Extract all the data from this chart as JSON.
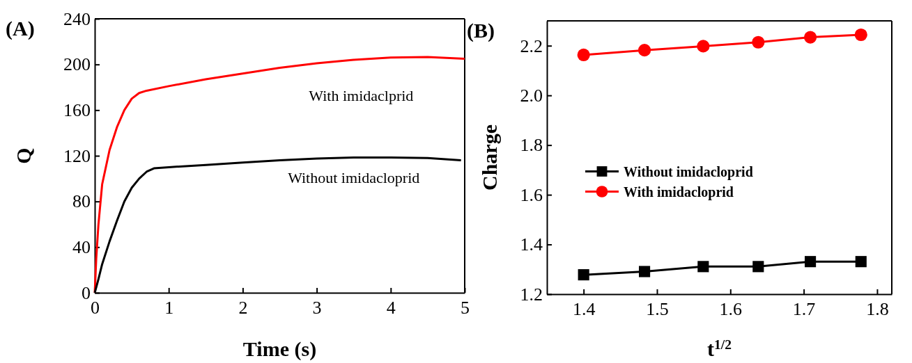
{
  "chart_data": [
    {
      "type": "line",
      "title": "(A)",
      "xlabel": "Time (s)",
      "ylabel": "Q",
      "xlim": [
        0,
        5
      ],
      "ylim": [
        0,
        240
      ],
      "xticks": [
        0,
        1,
        2,
        3,
        4,
        5
      ],
      "yticks": [
        0,
        40,
        80,
        120,
        160,
        200,
        240
      ],
      "grid": false,
      "legend": false,
      "series": [
        {
          "color": "#ff0000",
          "x": [
            0,
            0.02,
            0.05,
            0.1,
            0.2,
            0.3,
            0.4,
            0.5,
            0.6,
            0.7,
            1,
            1.5,
            2,
            2.5,
            3,
            3.5,
            4,
            4.5,
            5
          ],
          "values": [
            0,
            30,
            60,
            95,
            125,
            145,
            160,
            170,
            175,
            177,
            181,
            187,
            192,
            197,
            201,
            204,
            206,
            206.5,
            205
          ]
        },
        {
          "color": "#000000",
          "x": [
            0,
            0.05,
            0.1,
            0.2,
            0.3,
            0.4,
            0.5,
            0.6,
            0.7,
            0.8,
            1,
            1.5,
            2,
            2.5,
            3,
            3.5,
            4,
            4.5,
            4.95
          ],
          "values": [
            0,
            12,
            25,
            45,
            63,
            80,
            92,
            100,
            106,
            109,
            110,
            112,
            114,
            116,
            117.5,
            118.5,
            118.5,
            118,
            116
          ]
        }
      ],
      "annotations": [
        "With imidaclprid",
        "Without imidacloprid"
      ]
    },
    {
      "type": "line",
      "title": "(B)",
      "xlabel": "t$^{1/2}$",
      "ylabel": "Charge",
      "xlim": [
        1.35,
        1.82
      ],
      "ylim": [
        1.2,
        2.3
      ],
      "xticks": [
        1.4,
        1.5,
        1.6,
        1.7,
        1.8
      ],
      "yticks": [
        1.2,
        1.4,
        1.6,
        1.8,
        {
          "value": 2,
          "label": "2.0"
        },
        2.2
      ],
      "grid": false,
      "legend": "left",
      "x": [
        1.4,
        1.483,
        1.563,
        1.638,
        1.709,
        1.778
      ],
      "series": [
        {
          "name": "Without imidacloprid",
          "color": "#000000",
          "marker": "square",
          "values": [
            1.278,
            1.291,
            1.311,
            1.311,
            1.331,
            1.331
          ]
        },
        {
          "name": "With imidacloprid",
          "color": "#ff0000",
          "marker": "circle",
          "values": [
            2.163,
            2.182,
            2.198,
            2.214,
            2.234,
            2.244
          ]
        }
      ]
    }
  ]
}
